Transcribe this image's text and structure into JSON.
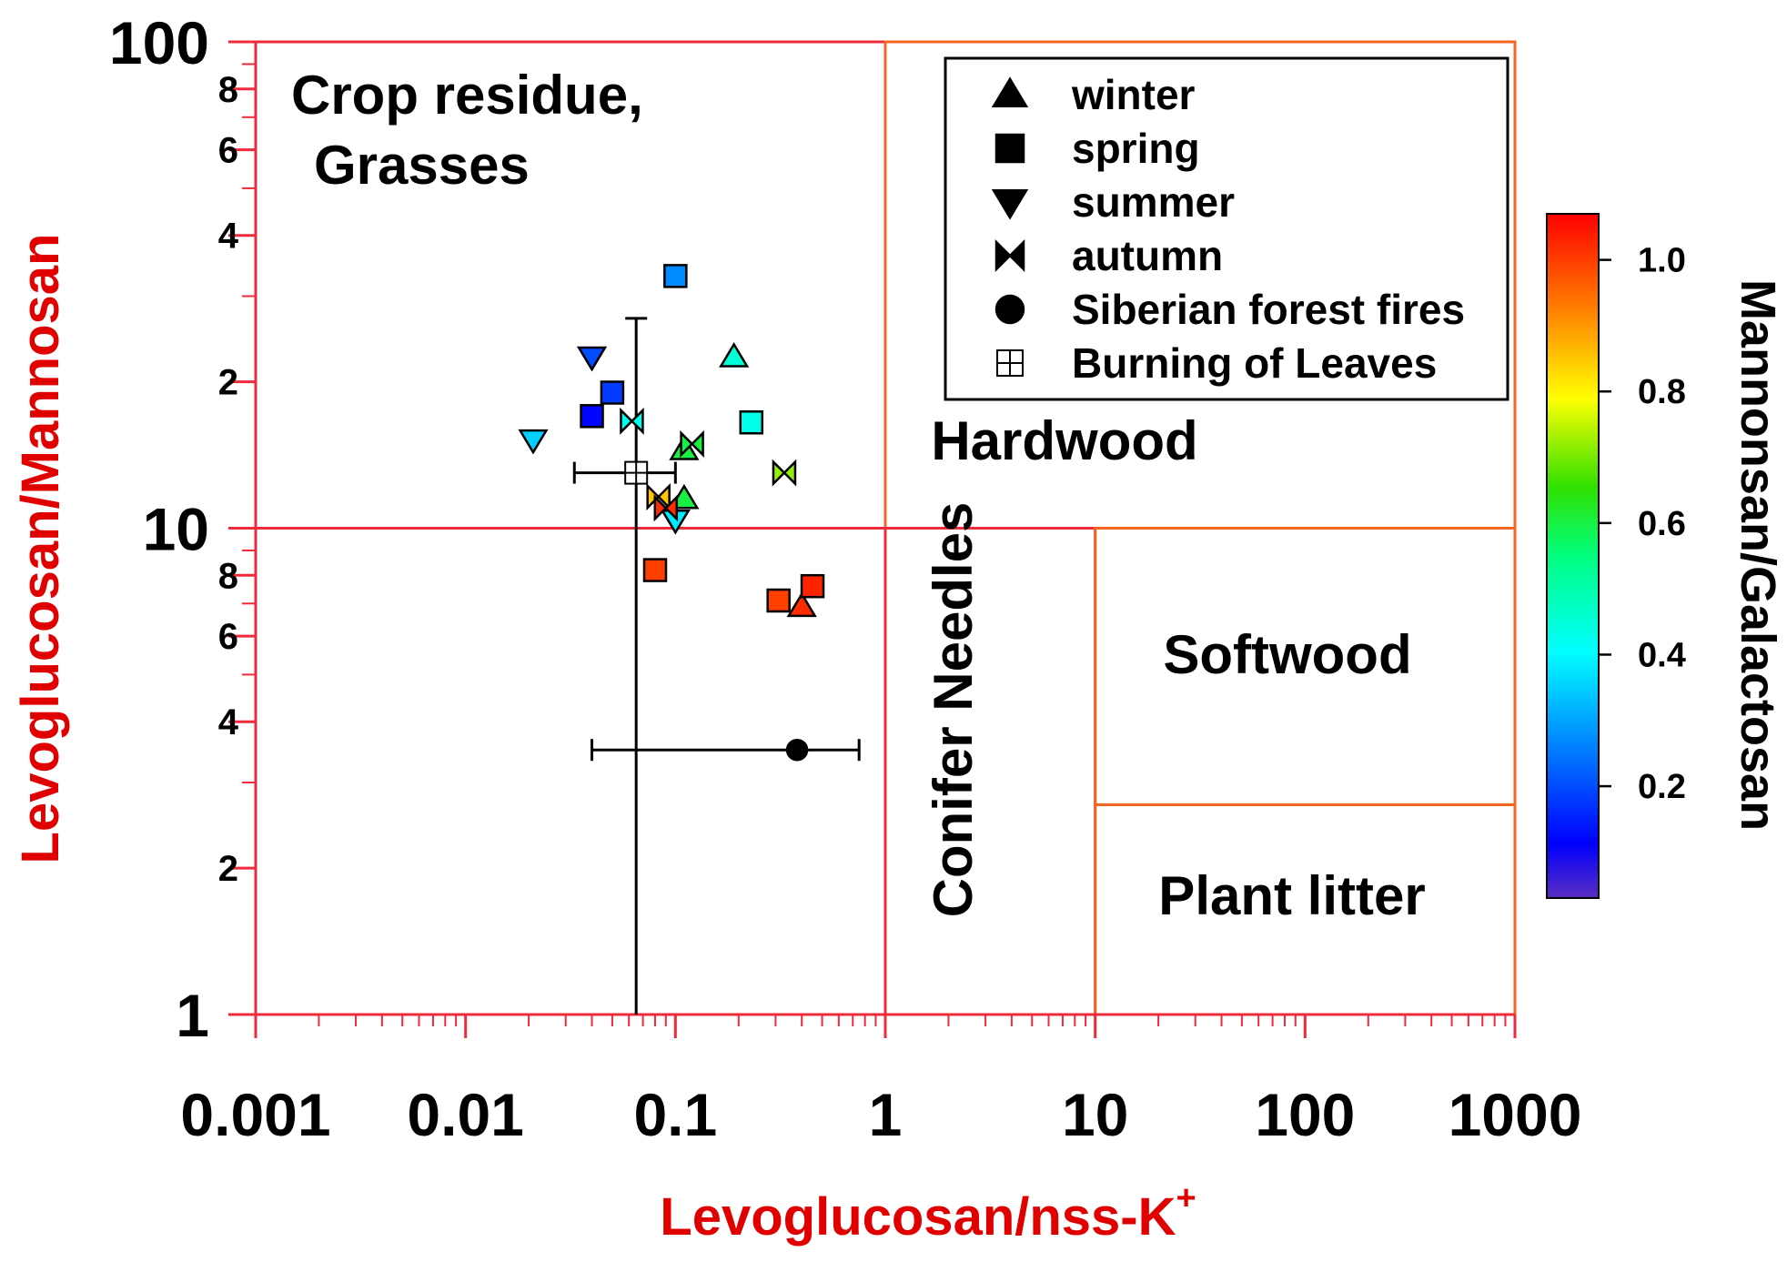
{
  "chart_data": {
    "type": "scatter",
    "x_axis": {
      "label": "Levoglucosan/nss-K",
      "label_superscript": "+",
      "scale": "log",
      "range": [
        0.001,
        1000
      ],
      "major_ticks": [
        0.001,
        0.01,
        0.1,
        1,
        10,
        100,
        1000
      ],
      "major_tick_labels": [
        "0.001",
        "0.01",
        "0.1",
        "1",
        "10",
        "100",
        "1000"
      ]
    },
    "y_axis": {
      "label": "Levoglucosan/Mannosan",
      "scale": "log",
      "range": [
        1,
        100
      ],
      "major_ticks": [
        1,
        10,
        100
      ],
      "major_tick_labels": [
        "1",
        "10",
        "100"
      ],
      "minor_labeled_ticks": [
        2,
        4,
        6,
        8,
        20,
        40,
        60,
        80
      ],
      "minor_tick_labels": [
        "2",
        "4",
        "6",
        "8",
        "2",
        "4",
        "6",
        "8"
      ]
    },
    "colorbar": {
      "label": "Mannonsan/Galactosan",
      "range": [
        0.03,
        1.07
      ],
      "ticks": [
        0.2,
        0.4,
        0.6,
        0.8,
        1.0
      ],
      "tick_labels": [
        "0.2",
        "0.4",
        "0.6",
        "0.8",
        "1.0"
      ]
    },
    "regions": [
      {
        "name": "Crop residue, Grasses",
        "lines": [
          "Crop residue,",
          "Grasses"
        ],
        "x_range": [
          0.001,
          1
        ],
        "y_range": [
          10,
          100
        ],
        "border_color": "#ee2b3b"
      },
      {
        "name": "Hardwood",
        "lines": [
          "Hardwood"
        ],
        "x_range": [
          1,
          1000
        ],
        "y_range": [
          10,
          100
        ],
        "border_color": "#f26522"
      },
      {
        "name": "Conifer Needles",
        "lines": [
          "Conifer Needles"
        ],
        "x_range": [
          1,
          10
        ],
        "y_range": [
          1,
          10
        ],
        "border_color": "#ee2b3b"
      },
      {
        "name": "Softwood",
        "lines": [
          "Softwood"
        ],
        "x_range": [
          10,
          1000
        ],
        "y_range": [
          2.7,
          10
        ],
        "border_color": "#f26522"
      },
      {
        "name": "Plant litter",
        "lines": [
          "Plant litter"
        ],
        "x_range": [
          10,
          1000
        ],
        "y_range": [
          1,
          2.7
        ],
        "border_color": "#f26522"
      }
    ],
    "legend": {
      "position": "top-right",
      "entries": [
        {
          "label": "winter",
          "marker": "triangle-up"
        },
        {
          "label": "spring",
          "marker": "square"
        },
        {
          "label": "summer",
          "marker": "triangle-down"
        },
        {
          "label": "autumn",
          "marker": "bowtie"
        },
        {
          "label": "Siberian forest fires",
          "marker": "circle"
        },
        {
          "label": "Burning of Leaves",
          "marker": "square-cross"
        }
      ]
    },
    "series": [
      {
        "name": "winter",
        "marker": "triangle-up",
        "points": [
          {
            "x": 0.19,
            "y": 22.5,
            "c": 0.45
          },
          {
            "x": 0.11,
            "y": 14.5,
            "c": 0.6
          },
          {
            "x": 0.11,
            "y": 11.5,
            "c": 0.6
          },
          {
            "x": 0.4,
            "y": 6.9,
            "c": 1.02
          }
        ]
      },
      {
        "name": "spring",
        "marker": "square",
        "points": [
          {
            "x": 0.1,
            "y": 33,
            "c": 0.27
          },
          {
            "x": 0.05,
            "y": 19,
            "c": 0.18
          },
          {
            "x": 0.04,
            "y": 17,
            "c": 0.12
          },
          {
            "x": 0.23,
            "y": 16.5,
            "c": 0.43
          },
          {
            "x": 0.08,
            "y": 8.2,
            "c": 1.0
          },
          {
            "x": 0.31,
            "y": 7.1,
            "c": 1.0
          },
          {
            "x": 0.45,
            "y": 7.6,
            "c": 1.03
          }
        ]
      },
      {
        "name": "summer",
        "marker": "triangle-down",
        "points": [
          {
            "x": 0.04,
            "y": 22.5,
            "c": 0.2
          },
          {
            "x": 0.021,
            "y": 15.2,
            "c": 0.35
          },
          {
            "x": 0.1,
            "y": 10.4,
            "c": 0.38
          }
        ]
      },
      {
        "name": "autumn",
        "marker": "bowtie",
        "points": [
          {
            "x": 0.062,
            "y": 16.6,
            "c": 0.42
          },
          {
            "x": 0.12,
            "y": 14.9,
            "c": 0.6
          },
          {
            "x": 0.33,
            "y": 13.0,
            "c": 0.72
          },
          {
            "x": 0.083,
            "y": 11.6,
            "c": 0.85
          },
          {
            "x": 0.09,
            "y": 11.0,
            "c": 1.02
          }
        ]
      },
      {
        "name": "Siberian forest fires",
        "marker": "circle",
        "points": [
          {
            "x": 0.38,
            "y": 3.5,
            "x_err": [
              0.04,
              0.75
            ]
          }
        ]
      },
      {
        "name": "Burning of Leaves",
        "marker": "square-cross",
        "points": [
          {
            "x": 0.065,
            "y": 13.0,
            "x_err": [
              0.033,
              0.1
            ],
            "y_err": [
              1,
              27
            ]
          }
        ]
      }
    ]
  }
}
